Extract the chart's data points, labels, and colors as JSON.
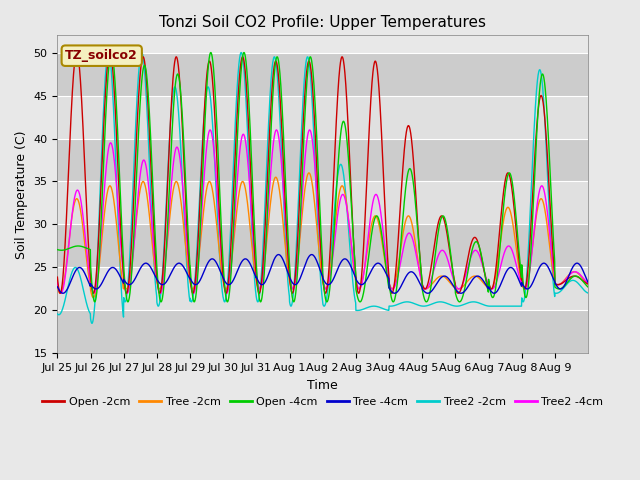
{
  "title": "Tonzi Soil CO2 Profile: Upper Temperatures",
  "xlabel": "Time",
  "ylabel": "Soil Temperature (C)",
  "ylim": [
    15,
    52
  ],
  "yticks": [
    15,
    20,
    25,
    30,
    35,
    40,
    45,
    50
  ],
  "fig_facecolor": "#e8e8e8",
  "plot_facecolor": "#e8e8e8",
  "annotation_text": "TZ_soilco2",
  "annotation_text_color": "#880000",
  "annotation_bg": "#f5f0c0",
  "annotation_border": "#aa8800",
  "series": [
    {
      "label": "Open -2cm",
      "color": "#cc0000"
    },
    {
      "label": "Tree -2cm",
      "color": "#ff8800"
    },
    {
      "label": "Open -4cm",
      "color": "#00cc00"
    },
    {
      "label": "Tree -4cm",
      "color": "#0000cc"
    },
    {
      "label": "Tree2 -2cm",
      "color": "#00cccc"
    },
    {
      "label": "Tree2 -4cm",
      "color": "#ff00ff"
    }
  ],
  "n_days": 16,
  "day_labels": [
    "Jul 25",
    "Jul 26",
    "Jul 27",
    "Jul 28",
    "Jul 29",
    "Jul 30",
    "Jul 31",
    "Aug 1",
    "Aug 2",
    "Aug 3",
    "Aug 4",
    "Aug 5",
    "Aug 6",
    "Aug 7",
    "Aug 8",
    "Aug 9"
  ],
  "open2_peaks": [
    50.0,
    50.0,
    49.5,
    49.5,
    49.0,
    49.5,
    49.0,
    49.0,
    49.5,
    49.0,
    41.5,
    31.0,
    28.5,
    36.0,
    45.0,
    24.0
  ],
  "open2_troughs": [
    22.0,
    22.0,
    22.0,
    22.0,
    22.0,
    22.0,
    22.0,
    22.0,
    22.0,
    22.0,
    22.0,
    22.5,
    22.0,
    22.5,
    22.5,
    23.0
  ],
  "tree2_peaks": [
    33.0,
    34.5,
    35.0,
    35.0,
    35.0,
    35.0,
    35.5,
    36.0,
    34.5,
    31.0,
    31.0,
    24.0,
    24.0,
    32.0,
    33.0,
    24.5
  ],
  "tree2_troughs": [
    22.0,
    21.5,
    22.5,
    22.5,
    22.5,
    22.5,
    22.5,
    22.5,
    22.5,
    22.5,
    22.5,
    22.5,
    22.5,
    22.5,
    22.5,
    23.0
  ],
  "open4_peaks": [
    27.5,
    50.0,
    48.5,
    47.5,
    50.0,
    50.0,
    49.5,
    49.5,
    42.0,
    31.0,
    36.5,
    31.0,
    28.0,
    36.0,
    47.5,
    24.0
  ],
  "open4_troughs": [
    27.0,
    21.0,
    21.0,
    21.0,
    21.0,
    21.0,
    21.0,
    21.0,
    21.0,
    21.0,
    21.0,
    21.0,
    21.0,
    21.5,
    21.5,
    22.5
  ],
  "tree4_peaks": [
    25.0,
    25.0,
    25.5,
    25.5,
    26.0,
    26.0,
    26.5,
    26.5,
    26.0,
    25.5,
    24.5,
    24.0,
    24.0,
    25.0,
    25.5,
    25.5
  ],
  "tree4_troughs": [
    22.0,
    22.5,
    23.0,
    23.0,
    23.0,
    23.0,
    23.0,
    23.0,
    23.0,
    23.0,
    22.0,
    22.0,
    22.0,
    22.0,
    22.5,
    22.5
  ],
  "tree2cm_peaks": [
    25.0,
    50.0,
    50.0,
    46.0,
    46.0,
    50.0,
    49.5,
    49.5,
    37.0,
    20.5,
    21.0,
    21.0,
    21.0,
    20.5,
    48.0,
    23.5
  ],
  "tree2cm_troughs": [
    19.5,
    18.5,
    21.0,
    20.5,
    21.0,
    21.0,
    21.0,
    20.5,
    20.5,
    20.0,
    20.5,
    20.5,
    20.5,
    20.5,
    21.0,
    22.0
  ],
  "tree24_peaks": [
    34.0,
    39.5,
    37.5,
    39.0,
    41.0,
    40.5,
    41.0,
    41.0,
    33.5,
    33.5,
    29.0,
    27.0,
    27.0,
    27.5,
    34.5,
    24.5
  ],
  "tree24_troughs": [
    22.0,
    22.0,
    22.0,
    22.0,
    22.0,
    22.0,
    22.5,
    22.5,
    22.5,
    22.5,
    22.5,
    22.5,
    22.5,
    22.5,
    22.5,
    23.0
  ],
  "pts_per_day": 144,
  "peak_hour": 14.0,
  "trough_hour": 6.0
}
